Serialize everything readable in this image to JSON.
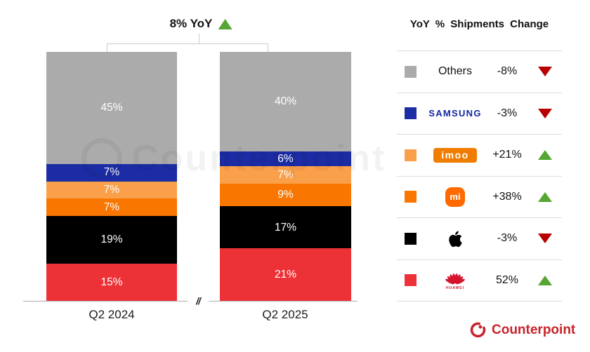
{
  "chart_data": {
    "type": "bar",
    "subtype": "stacked-100-percent-share",
    "title": "8% YoY",
    "title_direction": "up",
    "categories": [
      "Q2 2024",
      "Q2 2025"
    ],
    "series": [
      {
        "name": "Others",
        "color": "#ABABAB",
        "values": [
          45,
          40
        ]
      },
      {
        "name": "Samsung",
        "color": "#1C2CA4",
        "values": [
          7,
          6
        ]
      },
      {
        "name": "imoo",
        "color": "#FBA04A",
        "values": [
          7,
          7
        ]
      },
      {
        "name": "Xiaomi",
        "color": "#F97600",
        "values": [
          7,
          9
        ]
      },
      {
        "name": "Apple",
        "color": "#000000",
        "values": [
          19,
          17
        ]
      },
      {
        "name": "Huawei",
        "color": "#ED3237",
        "values": [
          15,
          21
        ]
      }
    ],
    "value_suffix": "%",
    "axis_break": true,
    "grid": false,
    "legend_position": "right"
  },
  "legend": {
    "header": "YoY % Shipments Change",
    "rows": [
      {
        "brand": "Others",
        "logo": "text",
        "logo_text": "Others",
        "change": "-8%",
        "direction": "down",
        "swatch": "#ABABAB"
      },
      {
        "brand": "Samsung",
        "logo": "samsung",
        "logo_text": "SAMSUNG",
        "change": "-3%",
        "direction": "down",
        "swatch": "#1C2CA4"
      },
      {
        "brand": "imoo",
        "logo": "imoo",
        "logo_text": "imoo",
        "change": "+21%",
        "direction": "up",
        "swatch": "#FBA04A"
      },
      {
        "brand": "Xiaomi",
        "logo": "xiaomi",
        "logo_text": "mi",
        "change": "+38%",
        "direction": "up",
        "swatch": "#F97600"
      },
      {
        "brand": "Apple",
        "logo": "apple",
        "logo_text": "",
        "change": "-3%",
        "direction": "down",
        "swatch": "#000000"
      },
      {
        "brand": "Huawei",
        "logo": "huawei",
        "logo_text": "HUAWEI",
        "change": "52%",
        "direction": "up",
        "swatch": "#ED3237"
      }
    ]
  },
  "axis": {
    "break_symbol": "//"
  },
  "watermark": {
    "text": "Counterpoint"
  },
  "footer": {
    "brand": "Counterpoint"
  },
  "colors": {
    "up_green": "#55A632",
    "down_red": "#B80000",
    "counterpoint_red": "#C8232C",
    "divider_gray": "#DCDCDC"
  }
}
